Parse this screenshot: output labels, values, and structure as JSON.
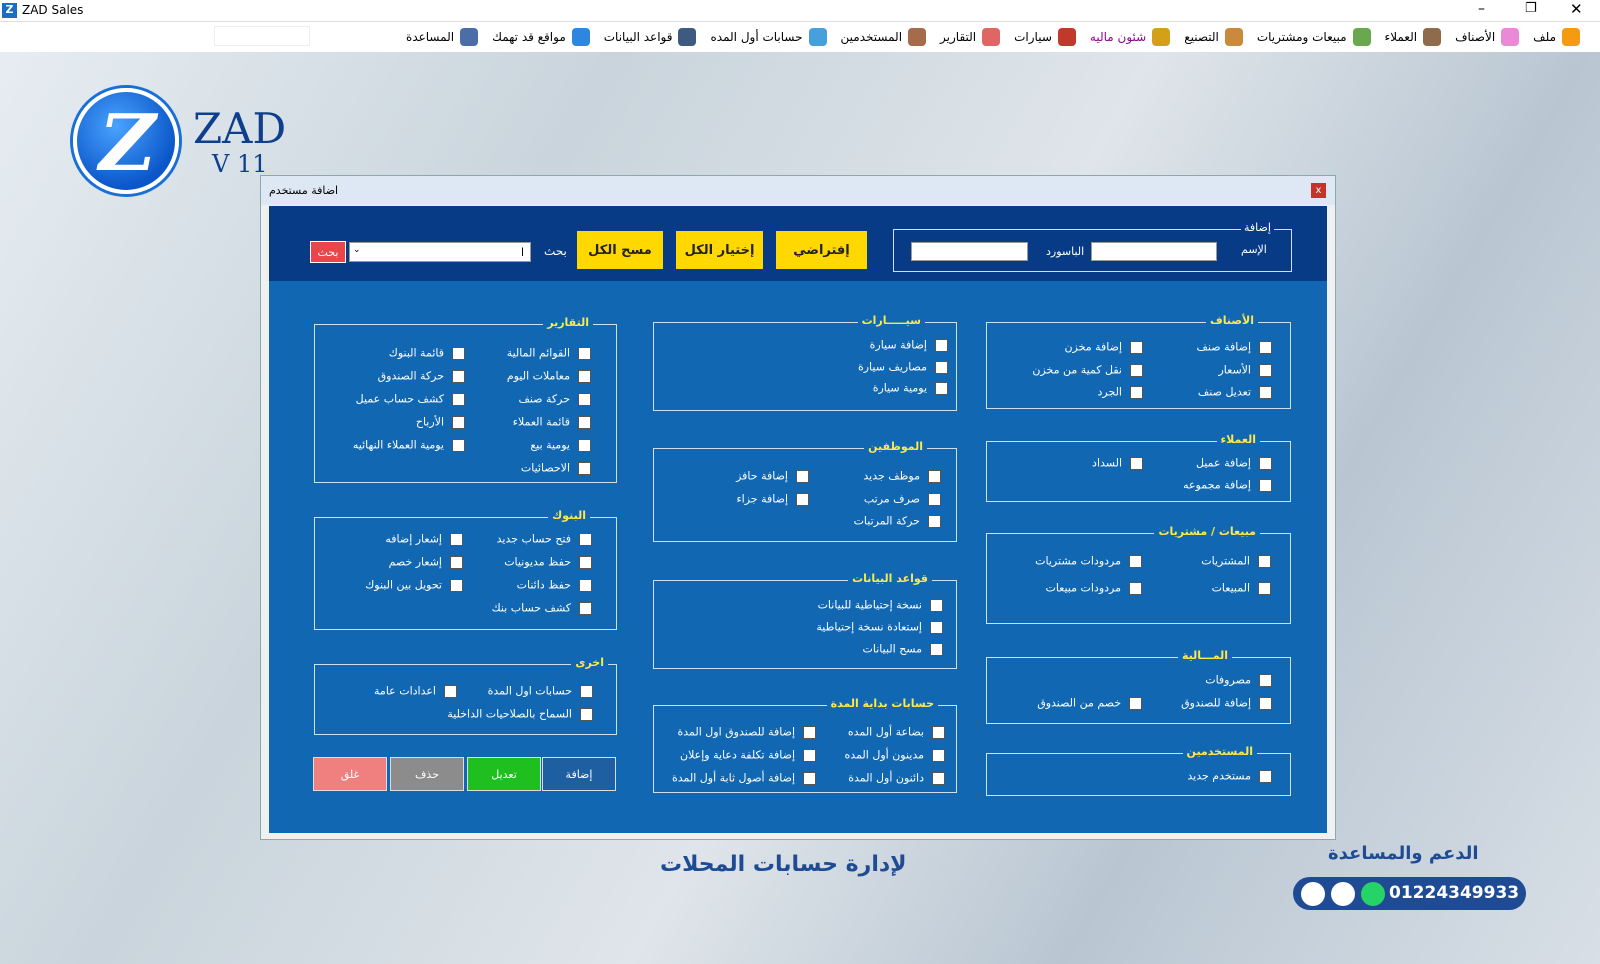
{
  "window": {
    "title": "ZAD Sales"
  },
  "menu": [
    "ملف",
    "الأصناف",
    "العملاء",
    "مبيعات ومشتريات",
    "التصنيع",
    "شئون ماليه",
    "سيارات",
    "التقارير",
    "المستخدمين",
    "حسابات أول المده",
    "قواعد البيانات",
    "مواقع قد تهمك",
    "المساعدة"
  ],
  "logo": {
    "name": "ZAD",
    "version": "V 11"
  },
  "dialog": {
    "title": "اضافة مستخدم",
    "add_box": {
      "legend": "إضافة",
      "name_label": "الإسم",
      "password_label": "الباسورد"
    },
    "buttons": [
      "إفتراضي",
      "إختيار الكل",
      "مسح الكل"
    ],
    "search": {
      "label": "بحث",
      "value": "ا",
      "button": "بحث"
    },
    "groups": [
      {
        "title": "الأصناف",
        "columns": [
          [
            "إضافة صنف",
            "الأسعار",
            "تعديل صنف"
          ],
          [
            "إضافة مخزن",
            "نقل كمية من مخزن",
            "الجرد"
          ]
        ]
      },
      {
        "title": "العملاء",
        "columns": [
          [
            "إضافة عميل",
            "إضافة مجموعه"
          ],
          [
            "السداد"
          ]
        ]
      },
      {
        "title": "مبيعات / مشتريات",
        "columns": [
          [
            "المشتريات",
            "المبيعات"
          ],
          [
            "مردودات مشتريات",
            "مردودات مبيعات"
          ]
        ]
      },
      {
        "title": "المـــالية",
        "columns": [
          [
            "مصروفات",
            "إضافة للصندوق"
          ],
          [
            "خصم من الصندوق"
          ]
        ]
      },
      {
        "title": "المستخدمين",
        "columns": [
          [
            "مستخدم جديد"
          ]
        ]
      },
      {
        "title": "سيـــــارات",
        "columns": [
          [
            "إضافة سيارة",
            "مصاريف سيارة",
            "يومية سيارة"
          ]
        ]
      },
      {
        "title": "الموظفين",
        "columns": [
          [
            "موظف جديد",
            "صرف مرتب",
            "حركة المرتبات"
          ],
          [
            "إضافة حافز",
            "إضافة جزاء"
          ]
        ]
      },
      {
        "title": "قواعد البيانات",
        "columns": [
          [
            "نسخة إحتياطية للبيانات",
            "إستعادة نسخة إحتياطية",
            "مسح البيانات"
          ]
        ]
      },
      {
        "title": "حسابات بداية المدة",
        "columns": [
          [
            "بضاعة أول المده",
            "مدينون أول المده",
            "دائنون أول المدة"
          ],
          [
            "إضافة للصندوق اول المدة",
            "إضافة تكلفة دعاية وإعلان",
            "إضافة أصول ثابة أول المدة"
          ]
        ]
      },
      {
        "title": "التقارير",
        "columns": [
          [
            "القوائم المالية",
            "معاملات اليوم",
            "حركة صنف",
            "قائمة العملاء",
            "يومية بيع",
            "الاحصائيات"
          ],
          [
            "قائمة البنوك",
            "حركة الصندوق",
            "كشف حساب عميل",
            "الأرباح",
            "يومية العملاء النهائيه"
          ]
        ]
      },
      {
        "title": "البنوك",
        "columns": [
          [
            "فتح حساب جديد",
            "حفظ مديونيات",
            "حفظ دائنات",
            "كشف حساب بنك"
          ],
          [
            "إشعار إضافه",
            "إشعار خصم",
            "تحويل بين البنوك"
          ]
        ]
      },
      {
        "title": "اخرى",
        "columns": [
          [
            "حسابات اول المدة",
            "السماح بالصلاحيات الداخلية"
          ],
          [
            "اعدادات عامة"
          ]
        ]
      }
    ],
    "actions": [
      "إضافة",
      "تعديل",
      "حذف",
      "غلق"
    ]
  },
  "footer": {
    "tagline": "لإدارة حسابات المحلات",
    "support": "الدعم والمساعدة",
    "phone": "01224349933"
  }
}
